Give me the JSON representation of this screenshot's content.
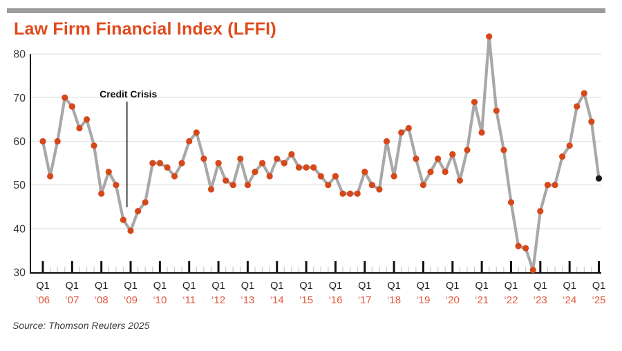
{
  "page": {
    "title": "Law Firm Financial Index (LFFI)",
    "source": "Source: Thomson Reuters 2025"
  },
  "colors": {
    "title": "#E04A1C",
    "top_bar": "#9C9C9C",
    "line": "#A8A8A8",
    "dot": "#D6481A",
    "last_dot": "#1A1A1A",
    "grid": "#E1E1E1",
    "axis": "#111111",
    "y_label": "#3A3A3A",
    "q1_label": "#1C1C1C",
    "year_label": "#E05A3E",
    "minor_tick": "#C9C9C9",
    "annotation": "#111111"
  },
  "chart_data": {
    "type": "line",
    "title": "Law Firm Financial Index (LFFI)",
    "frequency": "quarterly",
    "x_start": "Q1 2006",
    "x_end": "Q1 2025",
    "ylim": [
      30,
      80
    ],
    "yticks": [
      80,
      70,
      60,
      50,
      40,
      30
    ],
    "grid": "horizontal-only",
    "quarter_tick_label": "Q1",
    "year_labels": [
      "‘06",
      "‘07",
      "‘08",
      "‘09",
      "‘10",
      "‘11",
      "‘12",
      "‘13",
      "‘14",
      "‘15",
      "‘16",
      "‘17",
      "‘18",
      "‘19",
      "‘20",
      "‘21",
      "‘22",
      "‘23",
      "‘24",
      "‘25"
    ],
    "values": [
      60,
      52,
      60,
      70,
      68,
      63,
      65,
      59,
      48,
      53,
      50,
      42,
      39.5,
      44,
      46,
      55,
      55,
      54,
      52,
      55,
      60,
      62,
      56,
      49,
      55,
      51,
      50,
      56,
      50,
      53,
      55,
      52,
      56,
      55,
      57,
      54,
      54,
      54,
      52,
      50,
      52,
      48,
      48,
      48,
      53,
      50,
      49,
      60,
      52,
      62,
      63,
      56,
      50,
      53,
      56,
      53,
      57,
      51,
      58,
      69,
      62,
      84,
      67,
      58,
      46,
      36,
      35.5,
      30.5,
      44,
      50,
      50,
      56.5,
      59,
      68,
      71,
      64.5,
      51.5
    ],
    "annotation": {
      "text": "Credit Crisis",
      "points_between": [
        "Q4 2008",
        "Q1 2009"
      ]
    },
    "last_point_highlighted": true,
    "legend": "none"
  }
}
